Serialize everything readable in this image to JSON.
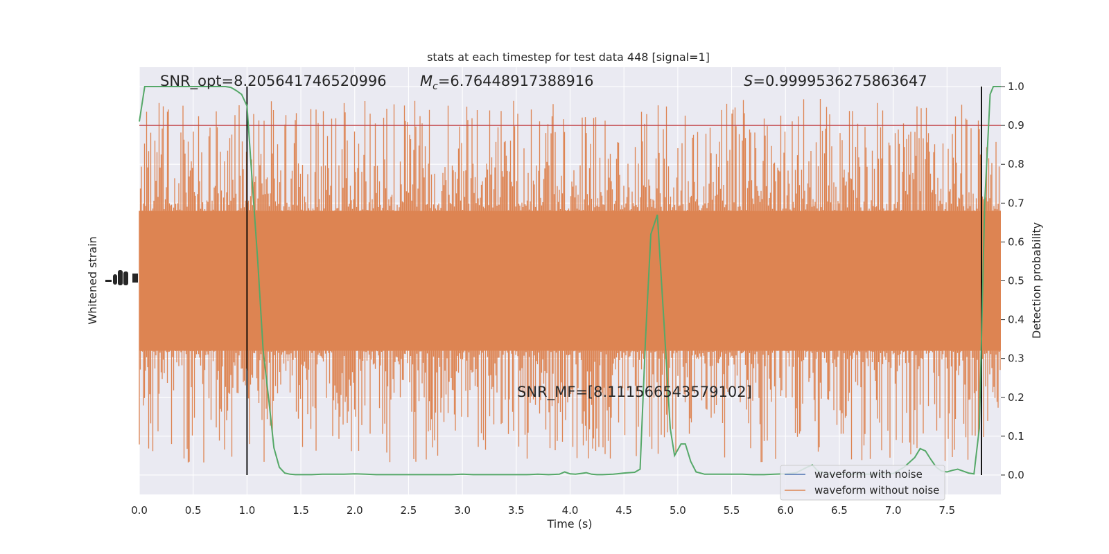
{
  "chart_data": {
    "type": "line",
    "title": "stats at each timestep for test data 448 [signal=1]",
    "xlabel": "Time (s)",
    "ylabel_left": "Whitened strain",
    "ylabel_right": "Detection probability",
    "xlim": [
      0.0,
      8.0
    ],
    "ylim_right": [
      -0.05,
      1.05
    ],
    "x_ticks": [
      "0.0",
      "0.5",
      "1.0",
      "1.5",
      "2.0",
      "2.5",
      "3.0",
      "3.5",
      "4.0",
      "4.5",
      "5.0",
      "5.5",
      "6.0",
      "6.5",
      "7.0",
      "7.5"
    ],
    "x_tick_values": [
      0.0,
      0.5,
      1.0,
      1.5,
      2.0,
      2.5,
      3.0,
      3.5,
      4.0,
      4.5,
      5.0,
      5.5,
      6.0,
      6.5,
      7.0,
      7.5
    ],
    "y_right_ticks": [
      "0.0",
      "0.1",
      "0.2",
      "0.3",
      "0.4",
      "0.5",
      "0.6",
      "0.7",
      "0.8",
      "0.9",
      "1.0"
    ],
    "y_right_tick_values": [
      0.0,
      0.1,
      0.2,
      0.3,
      0.4,
      0.5,
      0.6,
      0.7,
      0.8,
      0.9,
      1.0
    ],
    "grid": true,
    "legend_position": "lower-right",
    "annotations": {
      "snr_opt": "SNR_opt=8.205641746520996",
      "mc_symbol": "M",
      "mc_subscript": "c",
      "mc_value": "=6.76448917388916",
      "s_symbol": "S",
      "s_value": "=0.9999536275863647",
      "snr_mf": "SNR_MF=[8.111566543579102]"
    },
    "threshold": 0.9,
    "vertical_markers": [
      1.0,
      7.82
    ],
    "series": [
      {
        "name": "waveform with noise",
        "color": "#4c72b0"
      },
      {
        "name": "waveform without noise",
        "color": "#dd8452",
        "envelope_lower": 0.32,
        "envelope_upper": 0.68,
        "extreme_lower": 0.0,
        "extreme_upper": 1.0
      },
      {
        "color": "#55a868",
        "x": [
          0.0,
          0.05,
          0.1,
          0.2,
          0.3,
          0.4,
          0.5,
          0.6,
          0.7,
          0.8,
          0.85,
          0.9,
          0.95,
          1.0,
          1.05,
          1.1,
          1.15,
          1.2,
          1.25,
          1.3,
          1.35,
          1.4,
          1.45,
          1.5,
          1.6,
          1.7,
          1.8,
          1.9,
          2.0,
          2.1,
          2.2,
          2.3,
          2.4,
          2.5,
          2.6,
          2.7,
          2.8,
          2.9,
          3.0,
          3.1,
          3.2,
          3.3,
          3.4,
          3.5,
          3.6,
          3.7,
          3.8,
          3.9,
          3.95,
          4.0,
          4.05,
          4.1,
          4.15,
          4.2,
          4.25,
          4.3,
          4.4,
          4.5,
          4.6,
          4.65,
          4.7,
          4.75,
          4.81,
          4.87,
          4.93,
          4.97,
          5.03,
          5.07,
          5.12,
          5.17,
          5.25,
          5.3,
          5.4,
          5.5,
          5.6,
          5.7,
          5.8,
          5.9,
          6.0,
          6.1,
          6.2,
          6.25,
          6.3,
          6.4,
          6.5,
          6.6,
          6.7,
          6.8,
          6.9,
          7.0,
          7.1,
          7.2,
          7.25,
          7.3,
          7.35,
          7.4,
          7.45,
          7.5,
          7.55,
          7.6,
          7.65,
          7.7,
          7.75,
          7.8,
          7.82,
          7.85,
          7.9,
          7.93,
          7.97,
          8.0
        ],
        "values": [
          0.91,
          1.0,
          1.0,
          1.0,
          1.0,
          1.0,
          1.0,
          1.0,
          1.0,
          1.0,
          0.998,
          0.99,
          0.98,
          0.95,
          0.75,
          0.55,
          0.32,
          0.2,
          0.07,
          0.02,
          0.005,
          0.002,
          0.001,
          0.001,
          0.001,
          0.002,
          0.002,
          0.002,
          0.003,
          0.002,
          0.001,
          0.001,
          0.001,
          0.001,
          0.001,
          0.001,
          0.001,
          0.001,
          0.002,
          0.001,
          0.001,
          0.001,
          0.001,
          0.001,
          0.001,
          0.002,
          0.001,
          0.002,
          0.008,
          0.003,
          0.002,
          0.004,
          0.006,
          0.002,
          0.001,
          0.001,
          0.002,
          0.005,
          0.007,
          0.015,
          0.35,
          0.62,
          0.67,
          0.4,
          0.12,
          0.05,
          0.08,
          0.08,
          0.035,
          0.008,
          0.002,
          0.002,
          0.002,
          0.002,
          0.002,
          0.001,
          0.001,
          0.002,
          0.003,
          0.006,
          0.02,
          0.026,
          0.01,
          0.002,
          0.002,
          0.002,
          0.002,
          0.002,
          0.003,
          0.004,
          0.02,
          0.045,
          0.068,
          0.062,
          0.04,
          0.02,
          0.01,
          0.008,
          0.012,
          0.015,
          0.01,
          0.005,
          0.003,
          0.12,
          0.35,
          0.7,
          0.98,
          1.0,
          1.0,
          1.0
        ]
      }
    ]
  }
}
